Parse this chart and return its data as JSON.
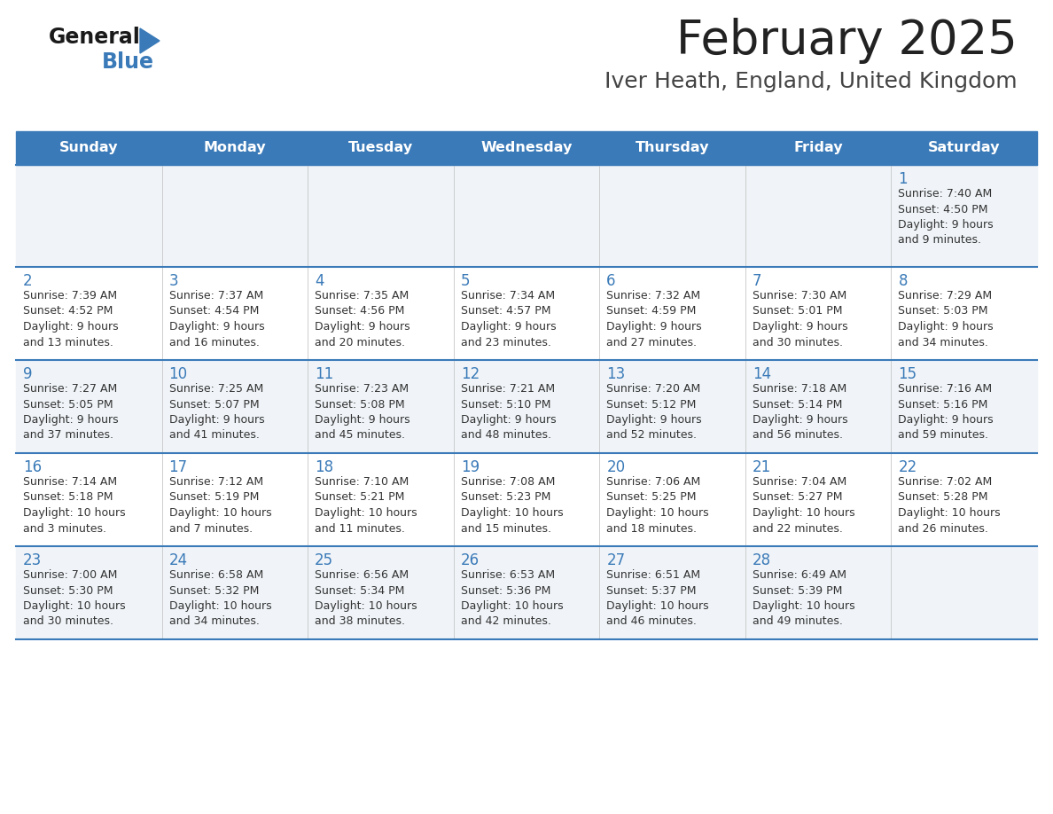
{
  "title": "February 2025",
  "subtitle": "Iver Heath, England, United Kingdom",
  "days_of_week": [
    "Sunday",
    "Monday",
    "Tuesday",
    "Wednesday",
    "Thursday",
    "Friday",
    "Saturday"
  ],
  "header_bg": "#3a7ab8",
  "header_text": "#ffffff",
  "row_bg": [
    "#f0f4f8",
    "#ffffff",
    "#f0f4f8",
    "#ffffff",
    "#f0f4f8"
  ],
  "title_color": "#222222",
  "subtitle_color": "#444444",
  "day_num_color": "#3a7ab8",
  "text_color": "#333333",
  "line_color": "#3a7ab8",
  "calendar_data": [
    [
      null,
      null,
      null,
      null,
      null,
      null,
      {
        "day": 1,
        "sunrise": "7:40 AM",
        "sunset": "4:50 PM",
        "daylight": "9 hours and 9 minutes."
      }
    ],
    [
      {
        "day": 2,
        "sunrise": "7:39 AM",
        "sunset": "4:52 PM",
        "daylight": "9 hours and 13 minutes."
      },
      {
        "day": 3,
        "sunrise": "7:37 AM",
        "sunset": "4:54 PM",
        "daylight": "9 hours and 16 minutes."
      },
      {
        "day": 4,
        "sunrise": "7:35 AM",
        "sunset": "4:56 PM",
        "daylight": "9 hours and 20 minutes."
      },
      {
        "day": 5,
        "sunrise": "7:34 AM",
        "sunset": "4:57 PM",
        "daylight": "9 hours and 23 minutes."
      },
      {
        "day": 6,
        "sunrise": "7:32 AM",
        "sunset": "4:59 PM",
        "daylight": "9 hours and 27 minutes."
      },
      {
        "day": 7,
        "sunrise": "7:30 AM",
        "sunset": "5:01 PM",
        "daylight": "9 hours and 30 minutes."
      },
      {
        "day": 8,
        "sunrise": "7:29 AM",
        "sunset": "5:03 PM",
        "daylight": "9 hours and 34 minutes."
      }
    ],
    [
      {
        "day": 9,
        "sunrise": "7:27 AM",
        "sunset": "5:05 PM",
        "daylight": "9 hours and 37 minutes."
      },
      {
        "day": 10,
        "sunrise": "7:25 AM",
        "sunset": "5:07 PM",
        "daylight": "9 hours and 41 minutes."
      },
      {
        "day": 11,
        "sunrise": "7:23 AM",
        "sunset": "5:08 PM",
        "daylight": "9 hours and 45 minutes."
      },
      {
        "day": 12,
        "sunrise": "7:21 AM",
        "sunset": "5:10 PM",
        "daylight": "9 hours and 48 minutes."
      },
      {
        "day": 13,
        "sunrise": "7:20 AM",
        "sunset": "5:12 PM",
        "daylight": "9 hours and 52 minutes."
      },
      {
        "day": 14,
        "sunrise": "7:18 AM",
        "sunset": "5:14 PM",
        "daylight": "9 hours and 56 minutes."
      },
      {
        "day": 15,
        "sunrise": "7:16 AM",
        "sunset": "5:16 PM",
        "daylight": "9 hours and 59 minutes."
      }
    ],
    [
      {
        "day": 16,
        "sunrise": "7:14 AM",
        "sunset": "5:18 PM",
        "daylight": "10 hours and 3 minutes."
      },
      {
        "day": 17,
        "sunrise": "7:12 AM",
        "sunset": "5:19 PM",
        "daylight": "10 hours and 7 minutes."
      },
      {
        "day": 18,
        "sunrise": "7:10 AM",
        "sunset": "5:21 PM",
        "daylight": "10 hours and 11 minutes."
      },
      {
        "day": 19,
        "sunrise": "7:08 AM",
        "sunset": "5:23 PM",
        "daylight": "10 hours and 15 minutes."
      },
      {
        "day": 20,
        "sunrise": "7:06 AM",
        "sunset": "5:25 PM",
        "daylight": "10 hours and 18 minutes."
      },
      {
        "day": 21,
        "sunrise": "7:04 AM",
        "sunset": "5:27 PM",
        "daylight": "10 hours and 22 minutes."
      },
      {
        "day": 22,
        "sunrise": "7:02 AM",
        "sunset": "5:28 PM",
        "daylight": "10 hours and 26 minutes."
      }
    ],
    [
      {
        "day": 23,
        "sunrise": "7:00 AM",
        "sunset": "5:30 PM",
        "daylight": "10 hours and 30 minutes."
      },
      {
        "day": 24,
        "sunrise": "6:58 AM",
        "sunset": "5:32 PM",
        "daylight": "10 hours and 34 minutes."
      },
      {
        "day": 25,
        "sunrise": "6:56 AM",
        "sunset": "5:34 PM",
        "daylight": "10 hours and 38 minutes."
      },
      {
        "day": 26,
        "sunrise": "6:53 AM",
        "sunset": "5:36 PM",
        "daylight": "10 hours and 42 minutes."
      },
      {
        "day": 27,
        "sunrise": "6:51 AM",
        "sunset": "5:37 PM",
        "daylight": "10 hours and 46 minutes."
      },
      {
        "day": 28,
        "sunrise": "6:49 AM",
        "sunset": "5:39 PM",
        "daylight": "10 hours and 49 minutes."
      },
      null
    ]
  ]
}
